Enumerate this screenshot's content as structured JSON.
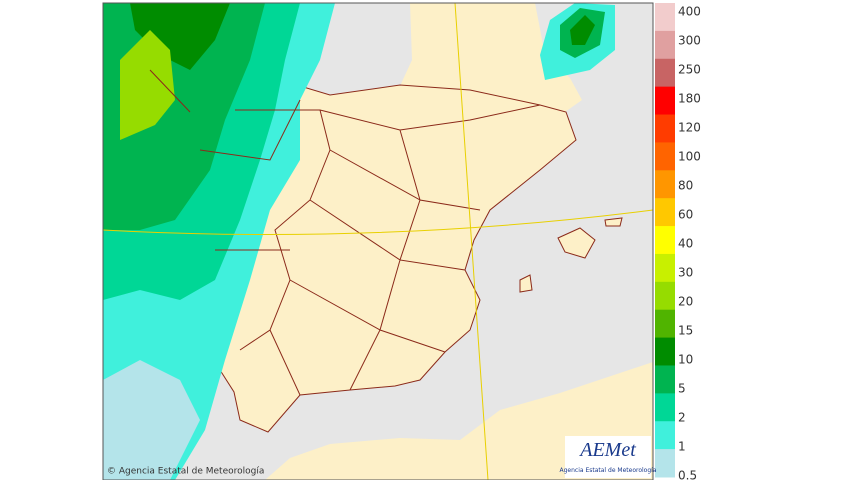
{
  "legend": {
    "items": [
      {
        "label": "400",
        "color": "#f2cccc"
      },
      {
        "label": "300",
        "color": "#e0a0a0"
      },
      {
        "label": "250",
        "color": "#c86464"
      },
      {
        "label": "180",
        "color": "#ff0000"
      },
      {
        "label": "120",
        "color": "#ff3c00"
      },
      {
        "label": "100",
        "color": "#ff6400"
      },
      {
        "label": "80",
        "color": "#ff9600"
      },
      {
        "label": "60",
        "color": "#ffc800"
      },
      {
        "label": "40",
        "color": "#ffff00"
      },
      {
        "label": "30",
        "color": "#c8f000"
      },
      {
        "label": "20",
        "color": "#96dc00"
      },
      {
        "label": "15",
        "color": "#50b400"
      },
      {
        "label": "10",
        "color": "#008c00"
      },
      {
        "label": "5",
        "color": "#00b450"
      },
      {
        "label": "2",
        "color": "#00d796"
      },
      {
        "label": "1",
        "color": "#40f0dc"
      },
      {
        "label": "0.5",
        "color": "#b4e4ea"
      }
    ]
  },
  "credit": "© Agencia Estatal de Meteorología",
  "logo": {
    "name": "AEMet",
    "subtitle": "Agencia Estatal de Meteorología"
  }
}
